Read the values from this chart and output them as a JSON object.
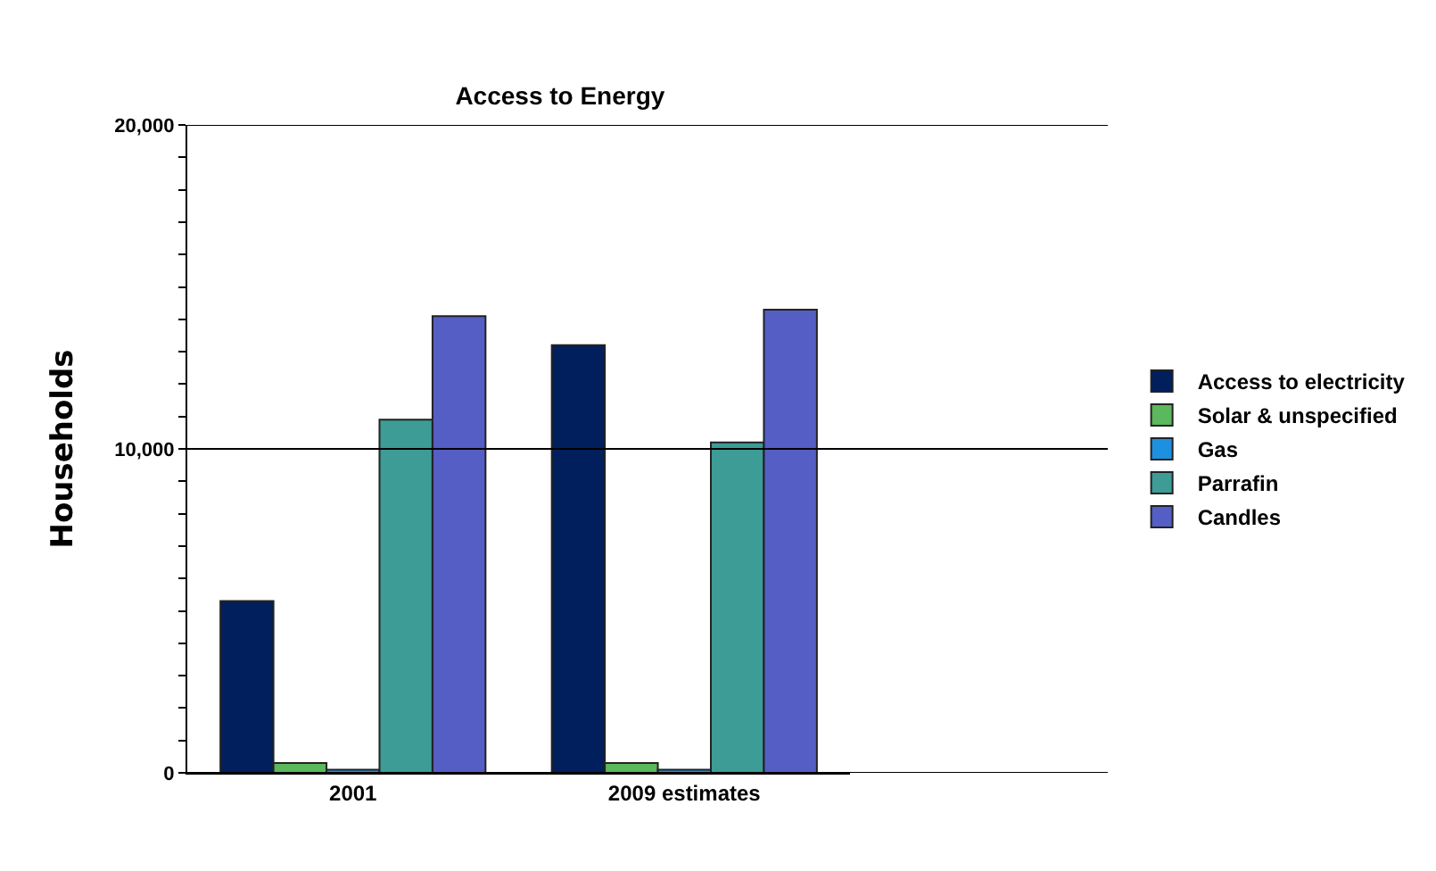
{
  "chart_data": {
    "type": "bar",
    "title": "Access to Energy",
    "ylabel": "Households",
    "categories": [
      "2001",
      "2009 estimates"
    ],
    "series": [
      {
        "name": "Access to electricity",
        "color": "#001f5c",
        "values": [
          5300,
          13200
        ]
      },
      {
        "name": "Solar & unspecified",
        "color": "#5cb85c",
        "values": [
          300,
          300
        ]
      },
      {
        "name": "Gas",
        "color": "#1e90e0",
        "values": [
          100,
          100
        ]
      },
      {
        "name": "Parrafin",
        "color": "#3d9c96",
        "values": [
          10900,
          10200
        ]
      },
      {
        "name": "Candles",
        "color": "#545ec4",
        "values": [
          14100,
          14300
        ]
      }
    ],
    "ylim": [
      0,
      20000
    ],
    "yticks": [
      {
        "value": 0,
        "label": "0"
      },
      {
        "value": 1000,
        "label": null
      },
      {
        "value": 2000,
        "label": null
      },
      {
        "value": 3000,
        "label": null
      },
      {
        "value": 4000,
        "label": null
      },
      {
        "value": 5000,
        "label": null
      },
      {
        "value": 6000,
        "label": null
      },
      {
        "value": 7000,
        "label": null
      },
      {
        "value": 8000,
        "label": null
      },
      {
        "value": 9000,
        "label": null
      },
      {
        "value": 10000,
        "label": "10,000"
      },
      {
        "value": 11000,
        "label": null
      },
      {
        "value": 12000,
        "label": null
      },
      {
        "value": 13000,
        "label": null
      },
      {
        "value": 14000,
        "label": null
      },
      {
        "value": 15000,
        "label": null
      },
      {
        "value": 16000,
        "label": null
      },
      {
        "value": 17000,
        "label": null
      },
      {
        "value": 18000,
        "label": null
      },
      {
        "value": 19000,
        "label": null
      },
      {
        "value": 20000,
        "label": "20,000"
      }
    ],
    "grid": "y",
    "legend": "right"
  }
}
